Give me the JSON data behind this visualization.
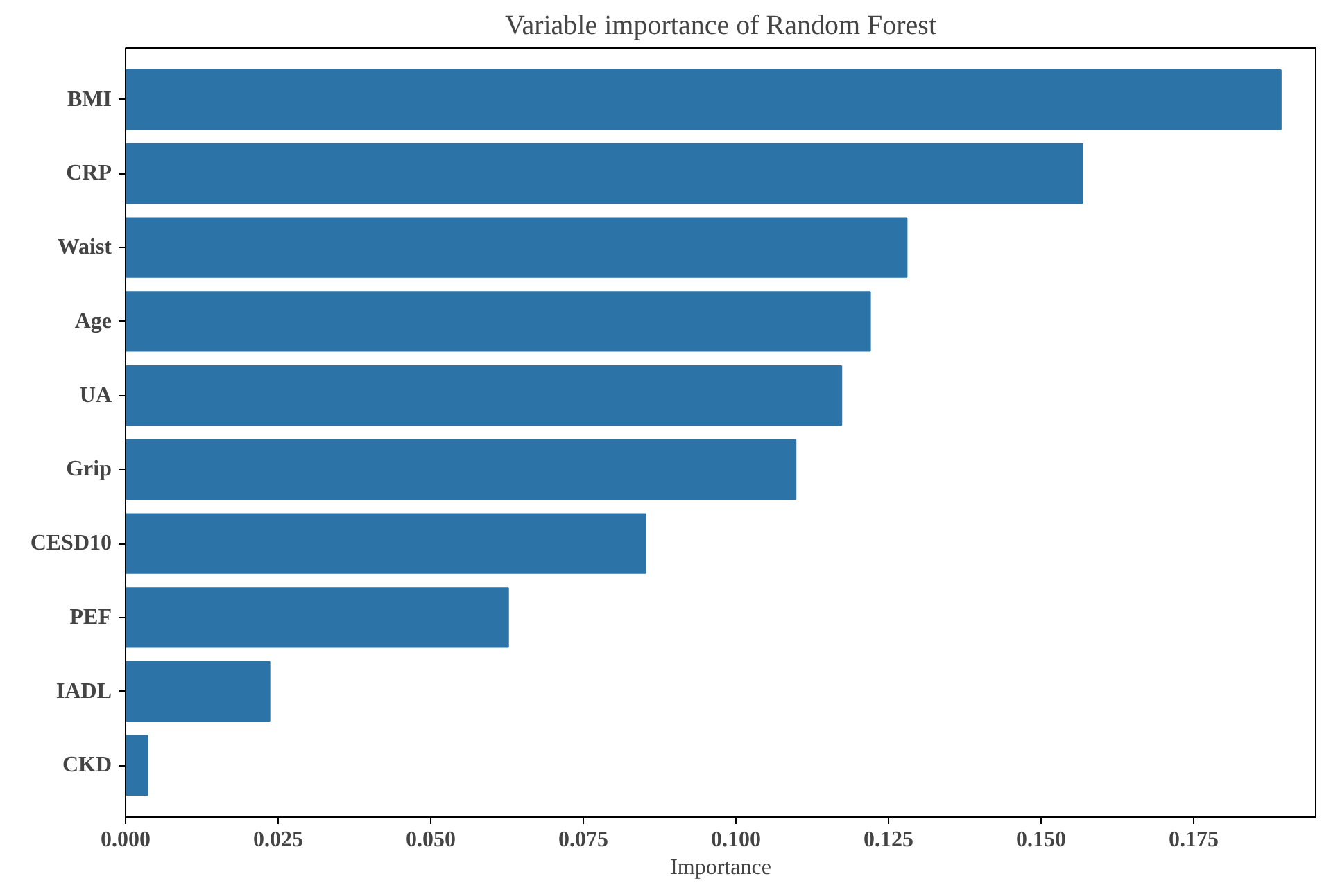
{
  "chart_data": {
    "type": "bar",
    "orientation": "horizontal",
    "title": "Variable importance of Random Forest",
    "xlabel": "Importance",
    "categories": [
      "BMI",
      "CRP",
      "Waist",
      "Age",
      "UA",
      "Grip",
      "CESD10",
      "PEF",
      "IADL",
      "CKD"
    ],
    "values": [
      0.1893,
      0.1568,
      0.128,
      0.122,
      0.1173,
      0.1098,
      0.0852,
      0.0627,
      0.0236,
      0.0036
    ],
    "color": "#2c74a8",
    "xlim": [
      0,
      0.195
    ],
    "xticks": [
      {
        "value": 0,
        "label": "0.000"
      },
      {
        "value": 0.025,
        "label": "0.025"
      },
      {
        "value": 0.05,
        "label": "0.050"
      },
      {
        "value": 0.075,
        "label": "0.075"
      },
      {
        "value": 0.1,
        "label": "0.100"
      },
      {
        "value": 0.125,
        "label": "0.125"
      },
      {
        "value": 0.15,
        "label": "0.150"
      },
      {
        "value": 0.175,
        "label": "0.175"
      }
    ],
    "grid": false
  }
}
